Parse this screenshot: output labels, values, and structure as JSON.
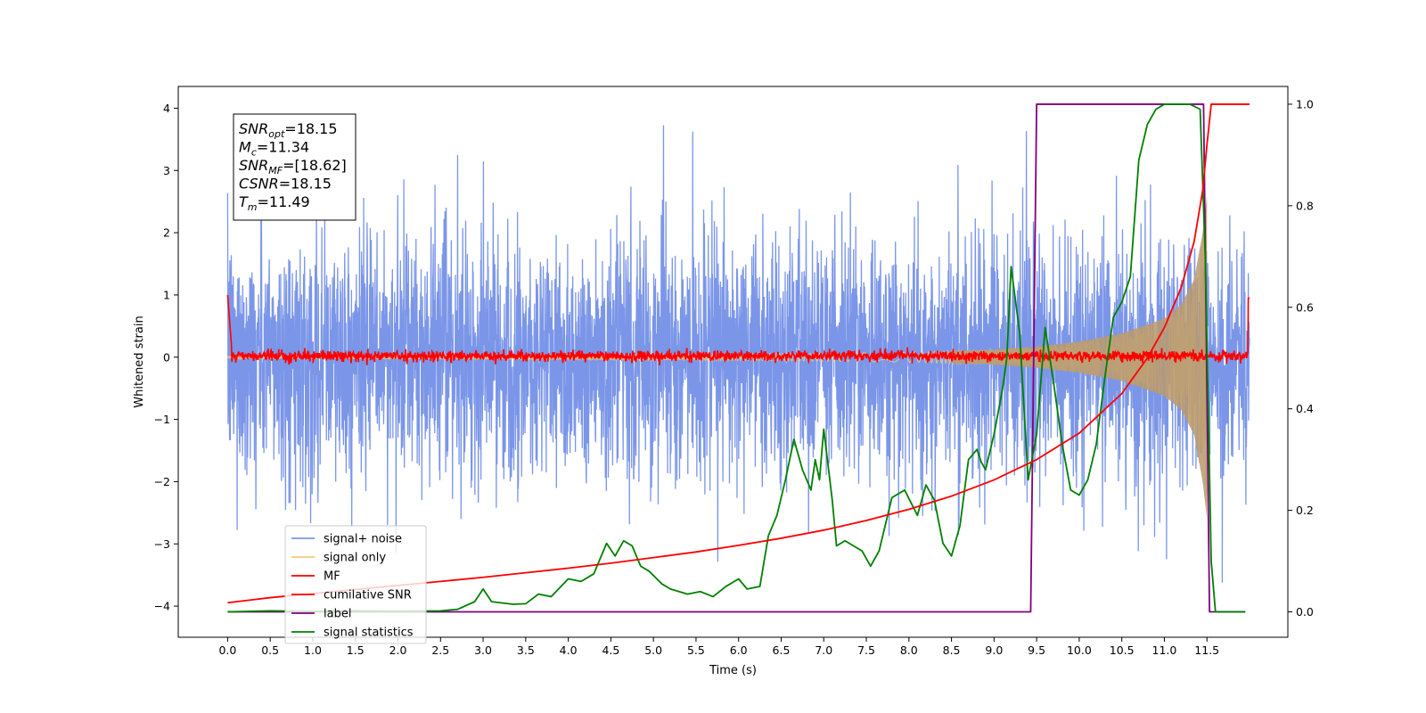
{
  "chart_data": {
    "type": "line",
    "title": "",
    "xlabel": "Time (s)",
    "ylabel": "Whitened strain",
    "ylabel_right": "",
    "xlim": [
      -0.58,
      12.45
    ],
    "ylim": [
      -4.5,
      4.35
    ],
    "ylim_right": [
      -0.05,
      1.035
    ],
    "x_ticks": [
      0.0,
      0.5,
      1.0,
      1.5,
      2.0,
      2.5,
      3.0,
      3.5,
      4.0,
      4.5,
      5.0,
      5.5,
      6.0,
      6.5,
      7.0,
      7.5,
      8.0,
      8.5,
      9.0,
      9.5,
      10.0,
      10.5,
      11.0,
      11.5
    ],
    "x_tick_labels": [
      "0.0",
      "0.5",
      "1.0",
      "1.5",
      "2.0",
      "2.5",
      "3.0",
      "3.5",
      "4.0",
      "4.5",
      "5.0",
      "5.5",
      "6.0",
      "6.5",
      "7.0",
      "7.5",
      "8.0",
      "8.5",
      "9.0",
      "9.5",
      "10.0",
      "10.5",
      "11.0",
      "11.5"
    ],
    "y_ticks": [
      -4,
      -3,
      -2,
      -1,
      0,
      1,
      2,
      3,
      4
    ],
    "y_tick_labels": [
      "−4",
      "−3",
      "−2",
      "−1",
      "0",
      "1",
      "2",
      "3",
      "4"
    ],
    "y_ticks_right": [
      0.0,
      0.2,
      0.4,
      0.6,
      0.8,
      1.0
    ],
    "y_tick_labels_right": [
      "0.0",
      "0.2",
      "0.4",
      "0.6",
      "0.8",
      "1.0"
    ],
    "legend_position": "lower-left",
    "grid": false,
    "annotation": {
      "lines": [
        {
          "base": "SNR",
          "sub": "opt",
          "value": "=18.15"
        },
        {
          "base": "M",
          "sub": "c",
          "value": "=11.34"
        },
        {
          "base": "SNR",
          "sub": "MF",
          "value": "=[18.62]"
        },
        {
          "base": "CSNR",
          "sub": "",
          "value": "=18.15"
        },
        {
          "base": "T",
          "sub": "m",
          "value": "=11.49"
        }
      ]
    },
    "series": [
      {
        "name": "signal+ noise",
        "axis": "left",
        "color": "#7b96e8",
        "kind": "noise",
        "x_range": [
          0.0,
          12.0
        ],
        "typical_band": [
          -1.5,
          1.9
        ],
        "extreme_range": [
          -4.0,
          3.95
        ]
      },
      {
        "name": "signal only",
        "axis": "left",
        "color": "#f5c97a",
        "kind": "chirp",
        "x_range": [
          0.0,
          11.5
        ],
        "envelope_x": [
          0.0,
          6.0,
          8.0,
          9.0,
          9.5,
          10.0,
          10.5,
          11.0,
          11.2,
          11.35,
          11.45,
          11.5
        ],
        "envelope_y": [
          0.02,
          0.05,
          0.08,
          0.12,
          0.17,
          0.25,
          0.38,
          0.62,
          0.85,
          1.25,
          2.0,
          2.6
        ]
      },
      {
        "name": "MF",
        "axis": "left",
        "color": "#ff0000",
        "kind": "matched-filter",
        "x_range": [
          0.0,
          12.0
        ],
        "start_value": 1.0,
        "end_value": 0.95,
        "noise_amplitude": 0.07
      },
      {
        "name": "cumilative SNR",
        "axis": "right",
        "color": "#ff0000",
        "x": [
          0.0,
          0.3,
          0.5,
          1.0,
          1.5,
          2.0,
          2.5,
          3.0,
          3.5,
          4.0,
          4.5,
          5.0,
          5.5,
          6.0,
          6.5,
          7.0,
          7.5,
          8.0,
          8.5,
          9.0,
          9.5,
          10.0,
          10.5,
          10.8,
          11.0,
          11.2,
          11.35,
          11.45,
          11.5,
          11.55,
          12.0
        ],
        "y": [
          0.018,
          0.024,
          0.028,
          0.036,
          0.044,
          0.052,
          0.06,
          0.068,
          0.077,
          0.086,
          0.096,
          0.107,
          0.118,
          0.131,
          0.145,
          0.161,
          0.18,
          0.202,
          0.228,
          0.26,
          0.3,
          0.352,
          0.43,
          0.5,
          0.56,
          0.64,
          0.73,
          0.83,
          0.92,
          1.0,
          1.0
        ]
      },
      {
        "name": "label",
        "axis": "right",
        "color": "#800080",
        "x": [
          0.0,
          9.43,
          9.5,
          11.46,
          11.53,
          11.95
        ],
        "y": [
          0.0,
          0.0,
          1.0,
          1.0,
          0.0,
          0.0
        ]
      },
      {
        "name": "signal statistics",
        "axis": "right",
        "color": "#008000",
        "x": [
          0.0,
          0.5,
          1.0,
          1.5,
          2.0,
          2.5,
          2.7,
          2.9,
          3.0,
          3.1,
          3.2,
          3.35,
          3.5,
          3.65,
          3.8,
          4.0,
          4.15,
          4.3,
          4.45,
          4.55,
          4.65,
          4.75,
          4.85,
          4.95,
          5.1,
          5.2,
          5.3,
          5.4,
          5.55,
          5.7,
          5.85,
          6.0,
          6.1,
          6.25,
          6.35,
          6.45,
          6.55,
          6.65,
          6.75,
          6.85,
          6.9,
          6.95,
          7.0,
          7.05,
          7.1,
          7.15,
          7.25,
          7.35,
          7.45,
          7.55,
          7.65,
          7.8,
          7.95,
          8.1,
          8.2,
          8.3,
          8.4,
          8.5,
          8.6,
          8.7,
          8.8,
          8.85,
          8.9,
          9.0,
          9.1,
          9.15,
          9.2,
          9.3,
          9.4,
          9.5,
          9.6,
          9.7,
          9.8,
          9.9,
          10.0,
          10.1,
          10.2,
          10.3,
          10.4,
          10.5,
          10.6,
          10.7,
          10.8,
          10.9,
          11.0,
          11.1,
          11.2,
          11.3,
          11.42,
          11.48,
          11.55,
          11.6,
          11.8,
          11.95
        ],
        "y": [
          0.0,
          0.002,
          0.001,
          0.002,
          0.001,
          0.002,
          0.005,
          0.02,
          0.045,
          0.02,
          0.018,
          0.015,
          0.016,
          0.035,
          0.03,
          0.065,
          0.06,
          0.075,
          0.135,
          0.11,
          0.14,
          0.13,
          0.09,
          0.08,
          0.055,
          0.045,
          0.04,
          0.035,
          0.04,
          0.03,
          0.05,
          0.065,
          0.045,
          0.05,
          0.15,
          0.19,
          0.26,
          0.34,
          0.28,
          0.24,
          0.3,
          0.26,
          0.36,
          0.29,
          0.22,
          0.13,
          0.14,
          0.13,
          0.12,
          0.09,
          0.12,
          0.225,
          0.24,
          0.19,
          0.25,
          0.22,
          0.135,
          0.11,
          0.17,
          0.3,
          0.32,
          0.295,
          0.28,
          0.35,
          0.44,
          0.5,
          0.68,
          0.55,
          0.26,
          0.35,
          0.56,
          0.45,
          0.33,
          0.24,
          0.23,
          0.26,
          0.33,
          0.46,
          0.58,
          0.61,
          0.66,
          0.89,
          0.96,
          0.99,
          1.0,
          1.0,
          1.0,
          1.0,
          0.99,
          0.7,
          0.1,
          0.0,
          0.0,
          0.0
        ]
      }
    ]
  }
}
